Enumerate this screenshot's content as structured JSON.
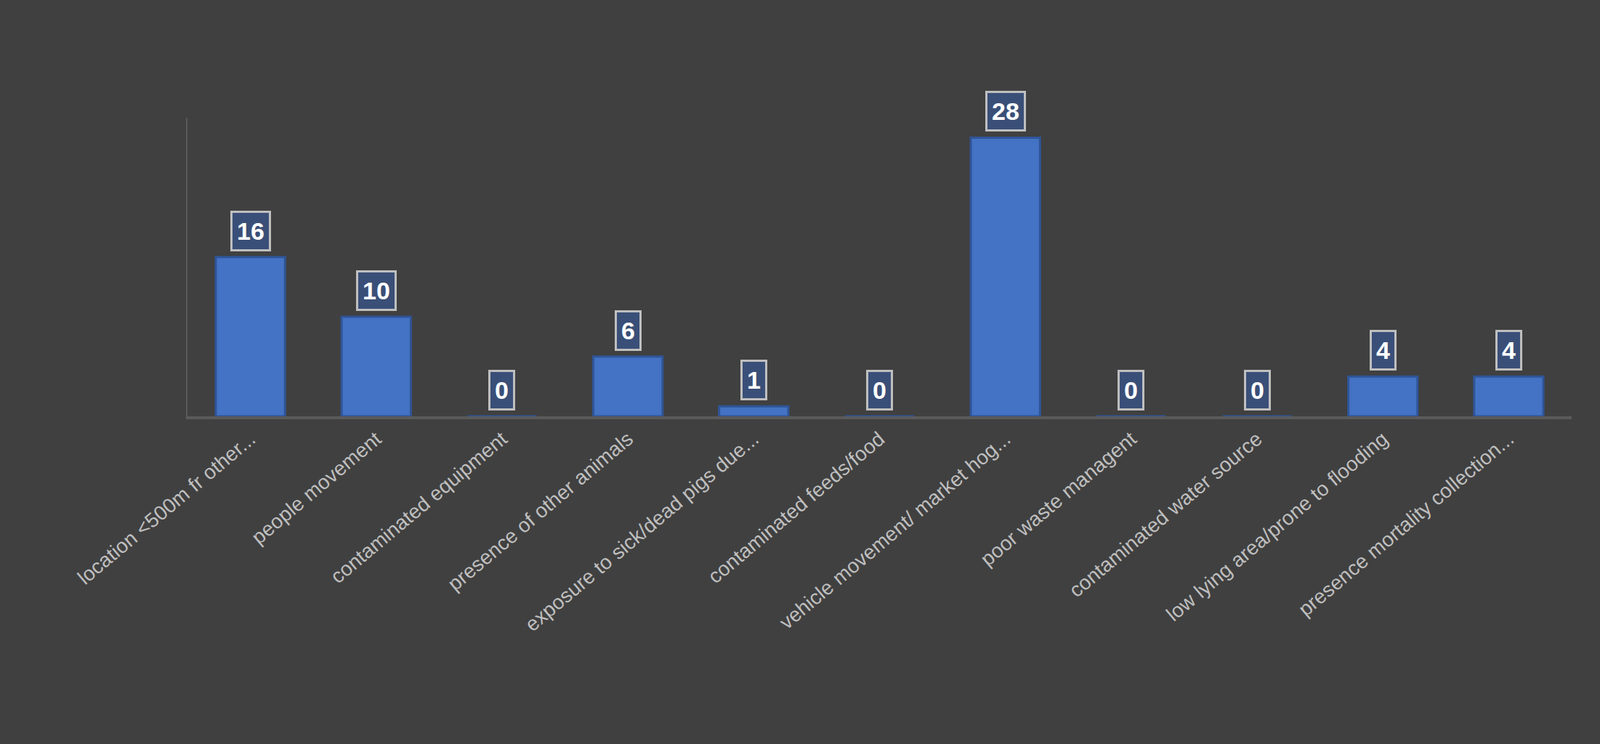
{
  "chart_data": {
    "type": "bar",
    "categories": [
      "location <500m fr other...",
      "people movement",
      "contaminated equipment",
      "presence of other animals",
      "exposure to sick/dead pigs due...",
      "contaminated feeds/food",
      "vehicle movement/ market hog...",
      "poor waste managent",
      "contaminated water source",
      "low lying area/prone to flooding",
      "presence mortality collection..."
    ],
    "values": [
      16,
      10,
      0,
      6,
      1,
      0,
      28,
      0,
      0,
      4,
      4
    ],
    "color": "#4472c4",
    "ylim": [
      0,
      30
    ],
    "yticks": [],
    "grid": false,
    "data_labels": true,
    "tick_labels": "x"
  }
}
